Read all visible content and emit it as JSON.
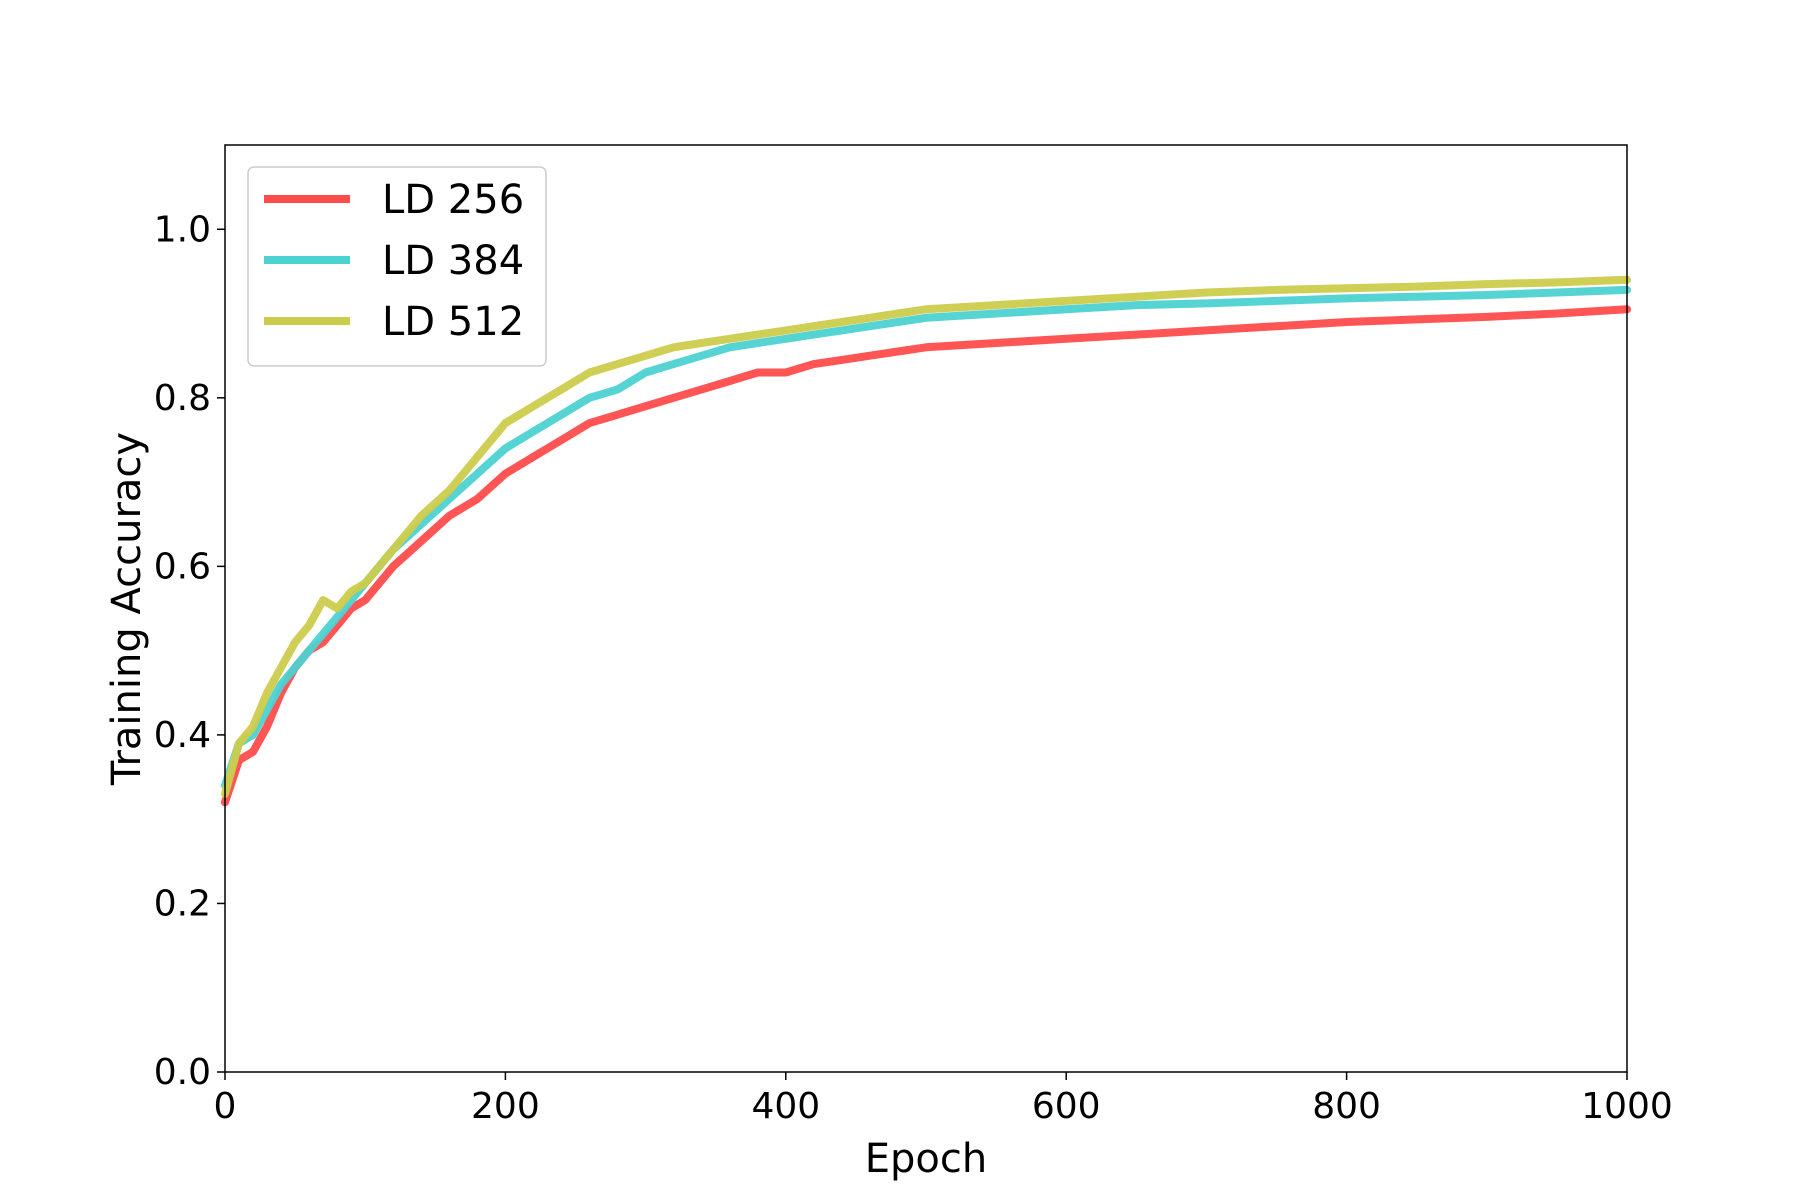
{
  "chart_data": {
    "type": "line",
    "title": "",
    "xlabel": "Epoch",
    "ylabel": "Training Accuracy",
    "xlim": [
      0,
      1000
    ],
    "ylim": [
      0,
      1.1
    ],
    "xticks": [
      0,
      200,
      400,
      600,
      800,
      1000
    ],
    "yticks": [
      0.0,
      0.2,
      0.4,
      0.6,
      0.8,
      1.0
    ],
    "xtick_labels": [
      "0",
      "200",
      "400",
      "600",
      "800",
      "1000"
    ],
    "ytick_labels": [
      "0.0",
      "0.2",
      "0.4",
      "0.6",
      "0.8",
      "1.0"
    ],
    "grid": false,
    "legend_position": "top-left",
    "series": [
      {
        "name": "LD 256",
        "color": "#ff4c4c",
        "points": [
          [
            0,
            0.32
          ],
          [
            10,
            0.37
          ],
          [
            20,
            0.38
          ],
          [
            30,
            0.41
          ],
          [
            40,
            0.45
          ],
          [
            50,
            0.48
          ],
          [
            60,
            0.5
          ],
          [
            70,
            0.51
          ],
          [
            80,
            0.53
          ],
          [
            90,
            0.55
          ],
          [
            100,
            0.56
          ],
          [
            120,
            0.6
          ],
          [
            140,
            0.63
          ],
          [
            160,
            0.66
          ],
          [
            180,
            0.68
          ],
          [
            200,
            0.71
          ],
          [
            220,
            0.73
          ],
          [
            240,
            0.75
          ],
          [
            260,
            0.77
          ],
          [
            280,
            0.78
          ],
          [
            300,
            0.79
          ],
          [
            320,
            0.8
          ],
          [
            340,
            0.81
          ],
          [
            360,
            0.82
          ],
          [
            380,
            0.83
          ],
          [
            400,
            0.83
          ],
          [
            420,
            0.84
          ],
          [
            440,
            0.845
          ],
          [
            460,
            0.85
          ],
          [
            480,
            0.855
          ],
          [
            500,
            0.86
          ],
          [
            550,
            0.865
          ],
          [
            600,
            0.87
          ],
          [
            650,
            0.875
          ],
          [
            700,
            0.88
          ],
          [
            750,
            0.885
          ],
          [
            800,
            0.89
          ],
          [
            850,
            0.893
          ],
          [
            900,
            0.896
          ],
          [
            950,
            0.9
          ],
          [
            1000,
            0.905
          ]
        ]
      },
      {
        "name": "LD 384",
        "color": "#4dd2d2",
        "points": [
          [
            0,
            0.34
          ],
          [
            10,
            0.39
          ],
          [
            20,
            0.4
          ],
          [
            30,
            0.43
          ],
          [
            40,
            0.46
          ],
          [
            50,
            0.48
          ],
          [
            60,
            0.5
          ],
          [
            70,
            0.52
          ],
          [
            80,
            0.54
          ],
          [
            90,
            0.56
          ],
          [
            100,
            0.58
          ],
          [
            120,
            0.62
          ],
          [
            140,
            0.65
          ],
          [
            160,
            0.68
          ],
          [
            180,
            0.71
          ],
          [
            200,
            0.74
          ],
          [
            220,
            0.76
          ],
          [
            240,
            0.78
          ],
          [
            260,
            0.8
          ],
          [
            280,
            0.81
          ],
          [
            300,
            0.83
          ],
          [
            320,
            0.84
          ],
          [
            340,
            0.85
          ],
          [
            360,
            0.86
          ],
          [
            380,
            0.865
          ],
          [
            400,
            0.87
          ],
          [
            420,
            0.875
          ],
          [
            440,
            0.88
          ],
          [
            460,
            0.885
          ],
          [
            480,
            0.89
          ],
          [
            500,
            0.895
          ],
          [
            550,
            0.9
          ],
          [
            600,
            0.905
          ],
          [
            650,
            0.91
          ],
          [
            700,
            0.912
          ],
          [
            750,
            0.915
          ],
          [
            800,
            0.918
          ],
          [
            850,
            0.92
          ],
          [
            900,
            0.922
          ],
          [
            950,
            0.925
          ],
          [
            1000,
            0.928
          ]
        ]
      },
      {
        "name": "LD 512",
        "color": "#cccc4c",
        "points": [
          [
            0,
            0.33
          ],
          [
            10,
            0.39
          ],
          [
            20,
            0.41
          ],
          [
            30,
            0.45
          ],
          [
            40,
            0.48
          ],
          [
            50,
            0.51
          ],
          [
            60,
            0.53
          ],
          [
            70,
            0.56
          ],
          [
            80,
            0.55
          ],
          [
            90,
            0.57
          ],
          [
            100,
            0.58
          ],
          [
            120,
            0.62
          ],
          [
            140,
            0.66
          ],
          [
            160,
            0.69
          ],
          [
            180,
            0.73
          ],
          [
            200,
            0.77
          ],
          [
            220,
            0.79
          ],
          [
            240,
            0.81
          ],
          [
            260,
            0.83
          ],
          [
            280,
            0.84
          ],
          [
            300,
            0.85
          ],
          [
            320,
            0.86
          ],
          [
            340,
            0.865
          ],
          [
            360,
            0.87
          ],
          [
            380,
            0.875
          ],
          [
            400,
            0.88
          ],
          [
            420,
            0.885
          ],
          [
            440,
            0.89
          ],
          [
            460,
            0.895
          ],
          [
            480,
            0.9
          ],
          [
            500,
            0.905
          ],
          [
            550,
            0.91
          ],
          [
            600,
            0.915
          ],
          [
            650,
            0.92
          ],
          [
            700,
            0.925
          ],
          [
            750,
            0.928
          ],
          [
            800,
            0.93
          ],
          [
            850,
            0.932
          ],
          [
            900,
            0.935
          ],
          [
            950,
            0.937
          ],
          [
            1000,
            0.94
          ]
        ]
      }
    ]
  }
}
